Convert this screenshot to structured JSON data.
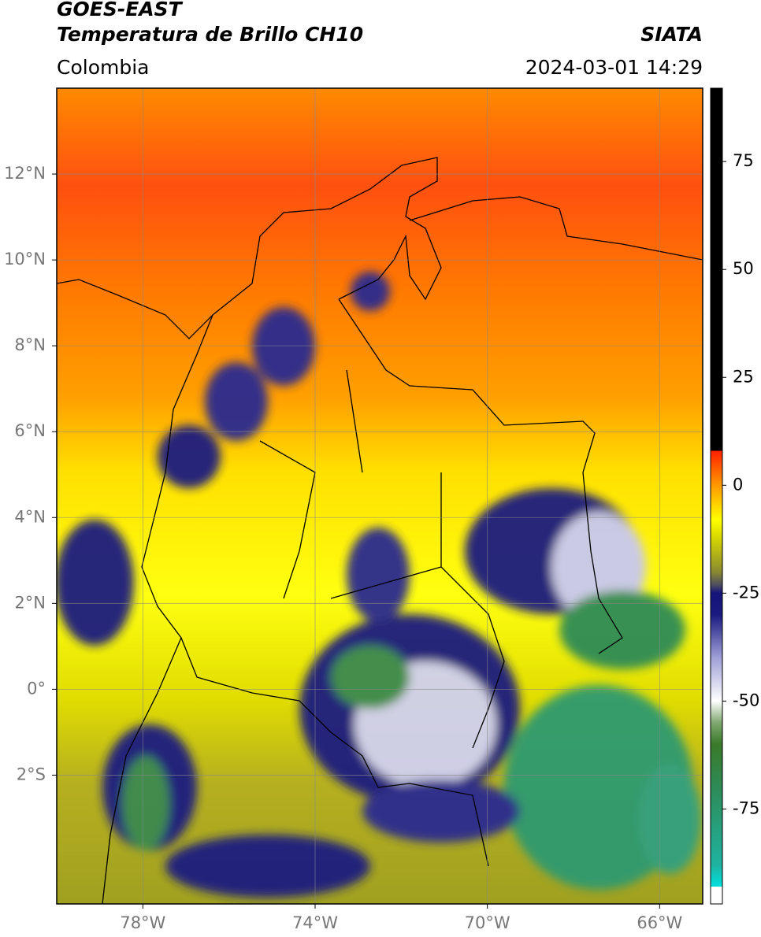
{
  "header": {
    "title": "GOES-EAST",
    "subtitle": "Temperatura de Brillo CH10",
    "source": "SIATA",
    "region": "Colombia",
    "timestamp": "2024-03-01 14:29"
  },
  "map": {
    "xlim": [
      -80,
      -65
    ],
    "ylim": [
      -5,
      14
    ],
    "xticks": [
      {
        "value": -78,
        "label": "78°W"
      },
      {
        "value": -74,
        "label": "74°W"
      },
      {
        "value": -70,
        "label": "70°W"
      },
      {
        "value": -66,
        "label": "66°W"
      }
    ],
    "yticks": [
      {
        "value": 12,
        "label": "12°N"
      },
      {
        "value": 10,
        "label": "10°N"
      },
      {
        "value": 8,
        "label": "8°N"
      },
      {
        "value": 6,
        "label": "6°N"
      },
      {
        "value": 4,
        "label": "4°N"
      },
      {
        "value": 2,
        "label": "2°N"
      },
      {
        "value": 0,
        "label": "0°"
      },
      {
        "value": -2,
        "label": "2°S"
      }
    ]
  },
  "colorbar": {
    "lim": [
      -97,
      92
    ],
    "ticks": [
      75,
      50,
      25,
      0,
      -25,
      -50,
      -75
    ],
    "colormap": [
      {
        "value": -97,
        "color": "#ffffff"
      },
      {
        "value": -93,
        "color": "#ffffff"
      },
      {
        "value": -93,
        "color": "#00e0e0"
      },
      {
        "value": -88,
        "color": "#1fb3a0"
      },
      {
        "value": -70,
        "color": "#2e8b57"
      },
      {
        "value": -60,
        "color": "#3a7a2a"
      },
      {
        "value": -55,
        "color": "#7fa870"
      },
      {
        "value": -50,
        "color": "#ffffff"
      },
      {
        "value": -40,
        "color": "#a0a0d8"
      },
      {
        "value": -30,
        "color": "#1a1a80"
      },
      {
        "value": -25,
        "color": "#14147a"
      },
      {
        "value": -23,
        "color": "#505060"
      },
      {
        "value": -20,
        "color": "#8a8a30"
      },
      {
        "value": -12,
        "color": "#d8d800"
      },
      {
        "value": -8,
        "color": "#ffff00"
      },
      {
        "value": 0,
        "color": "#ff9900"
      },
      {
        "value": 8,
        "color": "#ff2000"
      },
      {
        "value": 8,
        "color": "#000000"
      },
      {
        "value": 92,
        "color": "#000000"
      }
    ]
  }
}
